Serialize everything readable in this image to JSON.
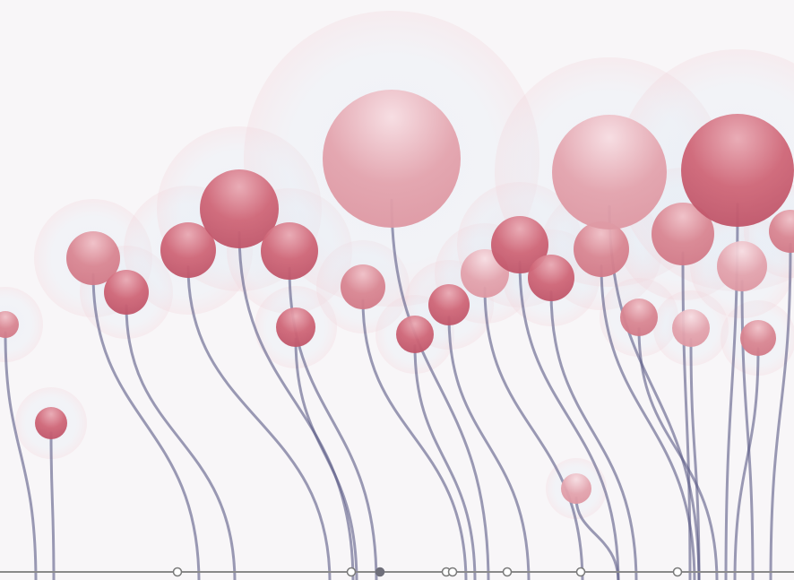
{
  "chart_data": {
    "type": "diagram",
    "description_visible_text": "",
    "colors": {
      "background": "#f8f6f8",
      "stem": "#5a5a86",
      "axis": "#8a8a8a",
      "bloom_dark": "#c95a6c",
      "bloom_mid": "#d77f8c",
      "bloom_light": "#e8b7c0",
      "halo_pink": "#f2d6dc",
      "halo_blue": "#dbe8f3"
    },
    "axis_markers": [
      {
        "type": "hollow"
      },
      {
        "type": "hollow"
      },
      {
        "type": "filled"
      },
      {
        "type": "hollow"
      },
      {
        "type": "hollow"
      },
      {
        "type": "hollow"
      },
      {
        "type": "hollow"
      },
      {
        "type": "hollow"
      }
    ],
    "blooms": [
      {
        "id": "b01",
        "size": "small",
        "tone": "mid"
      },
      {
        "id": "b02",
        "size": "small",
        "tone": "dark"
      },
      {
        "id": "b03",
        "size": "medium",
        "tone": "mid"
      },
      {
        "id": "b04",
        "size": "small",
        "tone": "dark"
      },
      {
        "id": "b05",
        "size": "medium",
        "tone": "dark"
      },
      {
        "id": "b06",
        "size": "large",
        "tone": "dark"
      },
      {
        "id": "b07",
        "size": "medium",
        "tone": "dark"
      },
      {
        "id": "b08",
        "size": "small",
        "tone": "dark"
      },
      {
        "id": "b09",
        "size": "medium",
        "tone": "mid"
      },
      {
        "id": "b10",
        "size": "xlarge",
        "tone": "light"
      },
      {
        "id": "b11",
        "size": "small",
        "tone": "dark"
      },
      {
        "id": "b12",
        "size": "small",
        "tone": "dark"
      },
      {
        "id": "b13",
        "size": "small",
        "tone": "light"
      },
      {
        "id": "b14",
        "size": "medium",
        "tone": "dark"
      },
      {
        "id": "b15",
        "size": "small",
        "tone": "dark"
      },
      {
        "id": "b16",
        "size": "medium",
        "tone": "mid"
      },
      {
        "id": "b17",
        "size": "xlarge",
        "tone": "light"
      },
      {
        "id": "b18",
        "size": "small",
        "tone": "mid"
      },
      {
        "id": "b19",
        "size": "medium",
        "tone": "mid"
      },
      {
        "id": "b20",
        "size": "small",
        "tone": "light"
      },
      {
        "id": "b21",
        "size": "xlarge",
        "tone": "dark"
      },
      {
        "id": "b22",
        "size": "small",
        "tone": "light"
      },
      {
        "id": "b23",
        "size": "small",
        "tone": "mid"
      },
      {
        "id": "b24",
        "size": "medium",
        "tone": "light"
      },
      {
        "id": "b25",
        "size": "small",
        "tone": "mid"
      }
    ]
  }
}
